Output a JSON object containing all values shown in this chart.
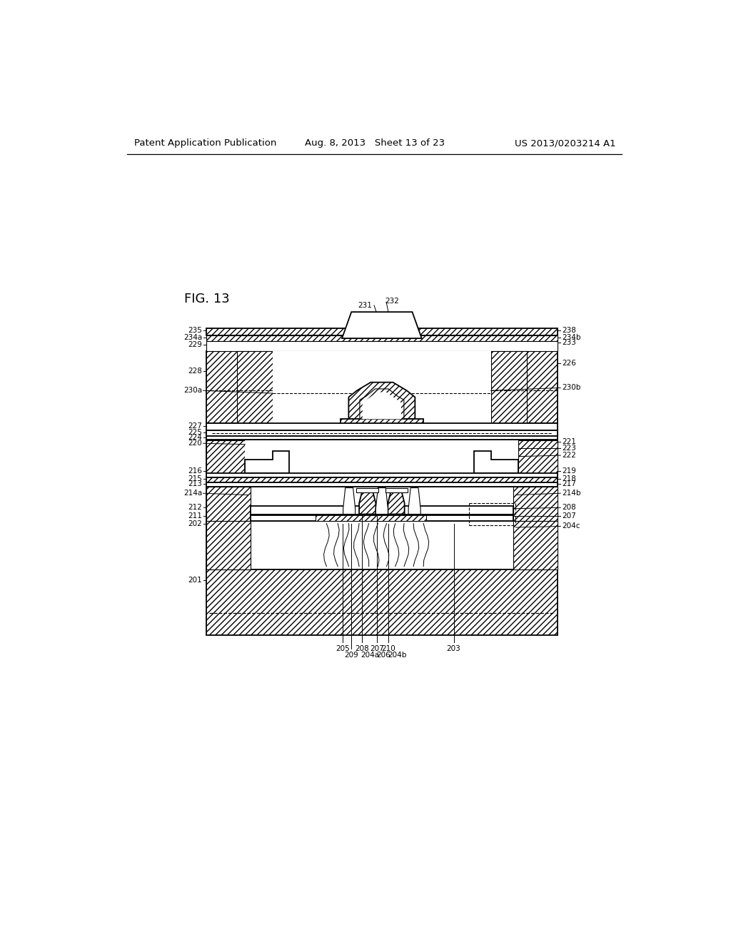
{
  "title": "FIG. 13",
  "header_left": "Patent Application Publication",
  "header_center": "Aug. 8, 2013   Sheet 13 of 23",
  "header_right": "US 2013/0203214 A1",
  "bg_color": "#ffffff",
  "line_color": "#000000"
}
